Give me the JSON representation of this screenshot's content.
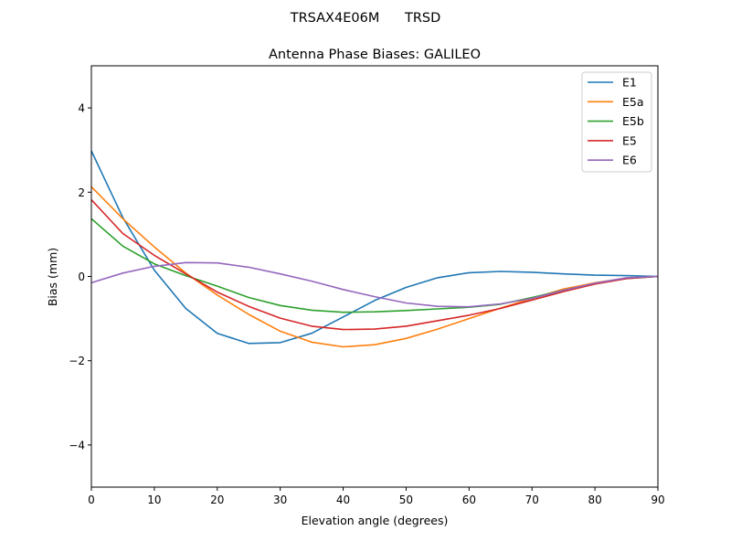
{
  "chart_data": {
    "type": "line",
    "suptitle": "TRSAX4E06M      TRSD",
    "title": "Antenna Phase Biases: GALILEO",
    "xlabel": "Elevation angle (degrees)",
    "ylabel": "Bias (mm)",
    "xlim": [
      0,
      90
    ],
    "ylim": [
      -5,
      5
    ],
    "xticks": [
      0,
      10,
      20,
      30,
      40,
      50,
      60,
      70,
      80,
      90
    ],
    "yticks": [
      -4,
      -2,
      0,
      2,
      4
    ],
    "ytick_labels": [
      "−4",
      "−2",
      "0",
      "2",
      "4"
    ],
    "grid": false,
    "legend_position": "top-right",
    "x": [
      0,
      5,
      10,
      15,
      20,
      25,
      30,
      35,
      40,
      45,
      50,
      55,
      60,
      65,
      70,
      75,
      80,
      85,
      90
    ],
    "series": [
      {
        "name": "E1",
        "color": "#1f77b4",
        "values": [
          2.98,
          1.4,
          0.15,
          -0.76,
          -1.35,
          -1.59,
          -1.57,
          -1.35,
          -0.96,
          -0.57,
          -0.26,
          -0.03,
          0.09,
          0.12,
          0.1,
          0.06,
          0.03,
          0.02,
          0.0
        ]
      },
      {
        "name": "E5a",
        "color": "#ff7f0e",
        "values": [
          2.13,
          1.37,
          0.7,
          0.08,
          -0.44,
          -0.9,
          -1.3,
          -1.56,
          -1.67,
          -1.62,
          -1.47,
          -1.25,
          -1.0,
          -0.75,
          -0.52,
          -0.3,
          -0.15,
          -0.04,
          0.0
        ]
      },
      {
        "name": "E5b",
        "color": "#2ca02c",
        "values": [
          1.37,
          0.72,
          0.3,
          0.02,
          -0.23,
          -0.5,
          -0.69,
          -0.8,
          -0.85,
          -0.84,
          -0.81,
          -0.77,
          -0.73,
          -0.66,
          -0.5,
          -0.33,
          -0.17,
          -0.05,
          0.0
        ]
      },
      {
        "name": "E5",
        "color": "#d62728",
        "values": [
          1.82,
          1.02,
          0.5,
          0.06,
          -0.37,
          -0.71,
          -0.99,
          -1.18,
          -1.26,
          -1.25,
          -1.18,
          -1.05,
          -0.92,
          -0.76,
          -0.56,
          -0.36,
          -0.18,
          -0.05,
          0.0
        ]
      },
      {
        "name": "E6",
        "color": "#9467bd",
        "values": [
          -0.15,
          0.08,
          0.24,
          0.33,
          0.32,
          0.22,
          0.06,
          -0.11,
          -0.31,
          -0.48,
          -0.63,
          -0.71,
          -0.72,
          -0.65,
          -0.52,
          -0.33,
          -0.16,
          -0.03,
          0.0
        ]
      }
    ]
  }
}
